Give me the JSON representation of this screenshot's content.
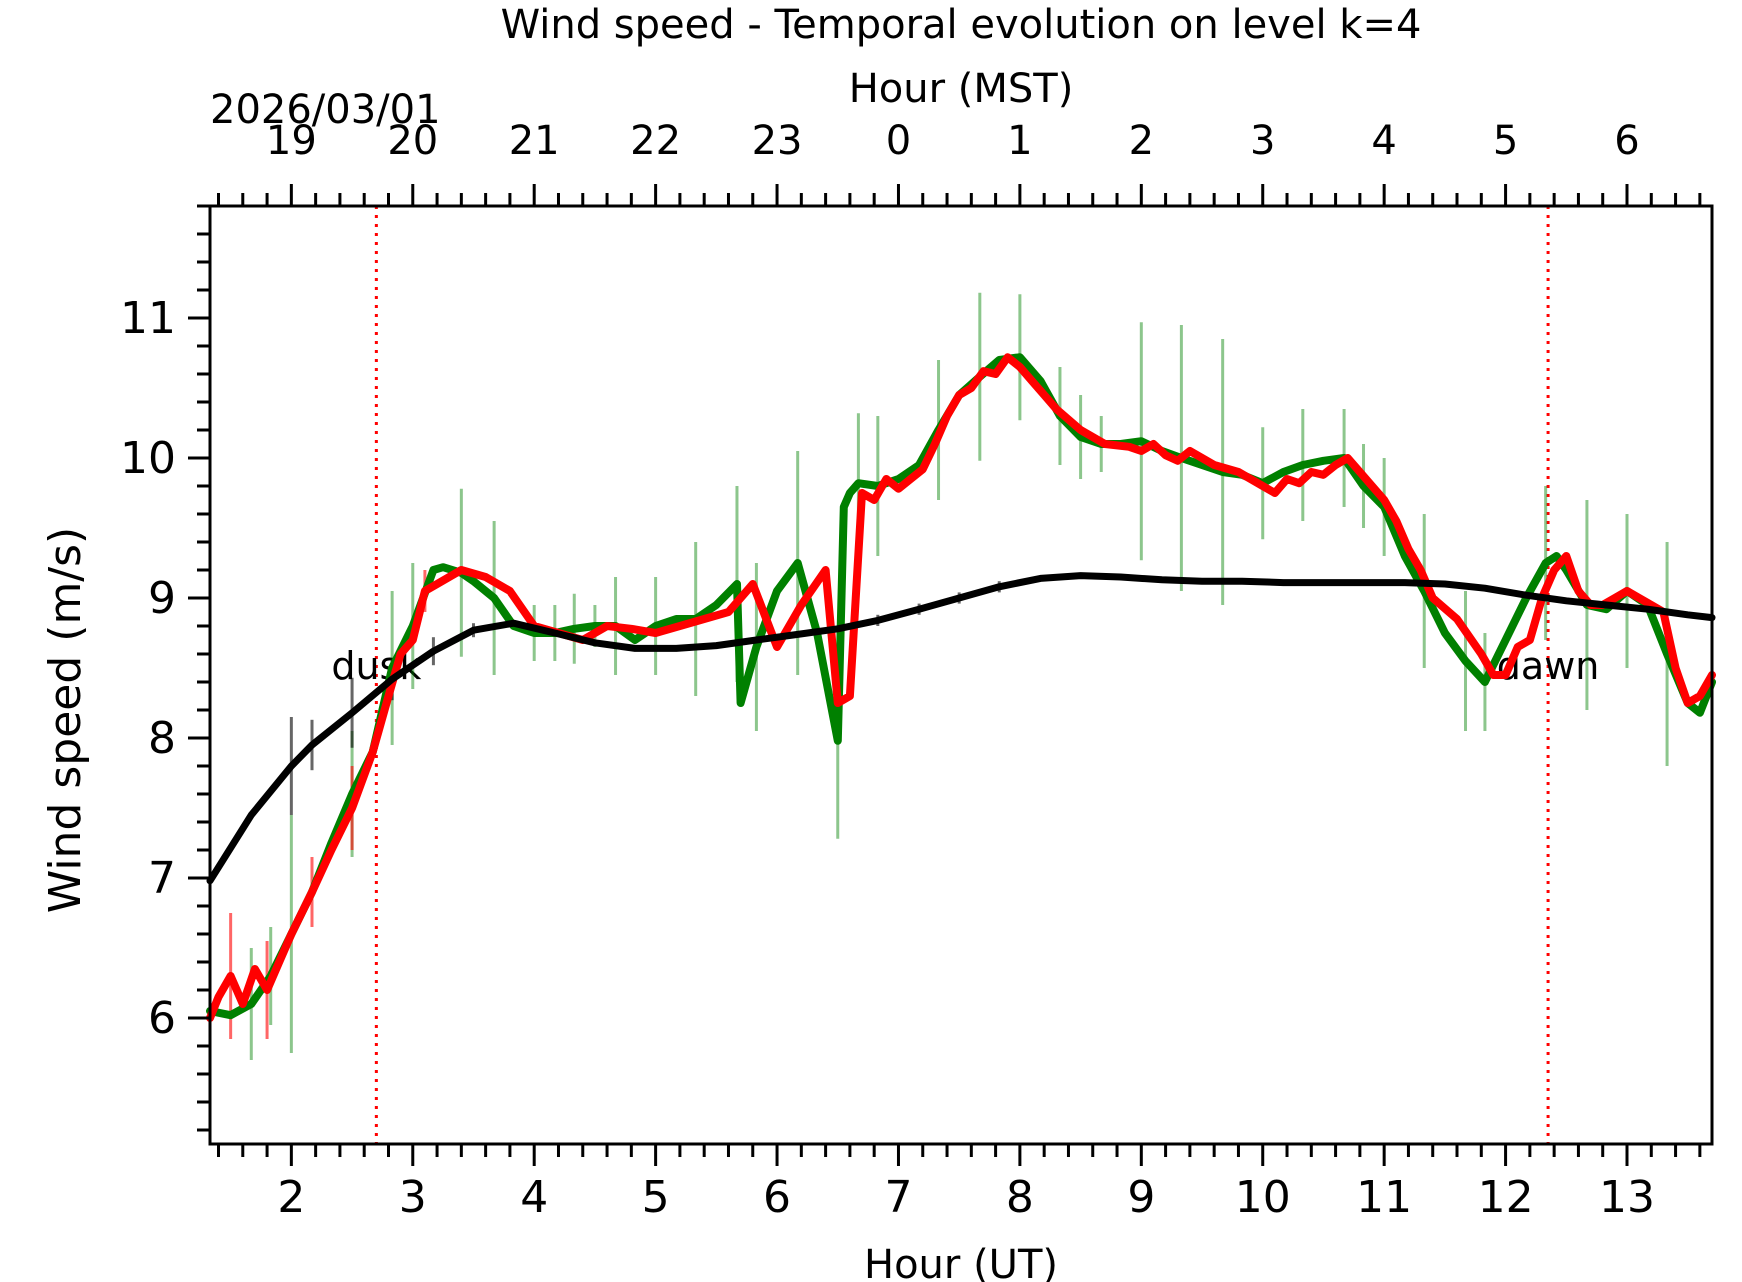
{
  "chart_data": {
    "type": "line",
    "title": "Wind speed - Temporal evolution on level k=4",
    "xlabel": "Hour (UT)",
    "ylabel": "Wind speed (m/s)",
    "top_xlabel": "Hour (MST)",
    "date_label": "2026/03/01",
    "xlim": [
      1.33,
      13.7
    ],
    "ylim": [
      5.1,
      11.8
    ],
    "x_ticks": [
      2,
      3,
      4,
      5,
      6,
      7,
      8,
      9,
      10,
      11,
      12,
      13
    ],
    "y_ticks": [
      6,
      7,
      8,
      9,
      10,
      11
    ],
    "top_ticks": [
      {
        "ut": 2,
        "label": "19"
      },
      {
        "ut": 3,
        "label": "20"
      },
      {
        "ut": 4,
        "label": "21"
      },
      {
        "ut": 5,
        "label": "22"
      },
      {
        "ut": 6,
        "label": "23"
      },
      {
        "ut": 7,
        "label": "0"
      },
      {
        "ut": 8,
        "label": "1"
      },
      {
        "ut": 9,
        "label": "2"
      },
      {
        "ut": 10,
        "label": "3"
      },
      {
        "ut": 11,
        "label": "4"
      },
      {
        "ut": 12,
        "label": "5"
      },
      {
        "ut": 13,
        "label": "6"
      }
    ],
    "grid": false,
    "markers": [
      {
        "label": "dusk",
        "x": 2.7,
        "label_y": 8.42,
        "color": "#ff0000"
      },
      {
        "label": "dawn",
        "x": 12.35,
        "label_y": 8.42,
        "color": "#ff0000"
      }
    ],
    "series": [
      {
        "color": "#008000",
        "x": [
          1.33,
          1.5,
          1.67,
          1.83,
          2.0,
          2.17,
          2.33,
          2.5,
          2.67,
          2.83,
          3.0,
          3.17,
          3.25,
          3.4,
          3.5,
          3.67,
          3.83,
          4.0,
          4.17,
          4.33,
          4.5,
          4.67,
          4.83,
          5.0,
          5.17,
          5.33,
          5.5,
          5.67,
          5.7,
          5.83,
          6.0,
          6.17,
          6.33,
          6.5,
          6.55,
          6.6,
          6.67,
          6.83,
          7.0,
          7.17,
          7.33,
          7.5,
          7.67,
          7.83,
          8.0,
          8.17,
          8.33,
          8.5,
          8.67,
          8.83,
          9.0,
          9.17,
          9.33,
          9.5,
          9.67,
          9.83,
          10.0,
          10.17,
          10.33,
          10.5,
          10.67,
          10.83,
          11.0,
          11.17,
          11.33,
          11.5,
          11.67,
          11.83,
          12.0,
          12.17,
          12.33,
          12.42,
          12.5,
          12.67,
          12.83,
          13.0,
          13.17,
          13.33,
          13.5,
          13.6,
          13.7
        ],
        "y": [
          6.05,
          6.02,
          6.1,
          6.3,
          6.6,
          6.9,
          7.25,
          7.6,
          7.9,
          8.5,
          8.8,
          9.2,
          9.22,
          9.18,
          9.12,
          9.0,
          8.8,
          8.75,
          8.75,
          8.78,
          8.8,
          8.8,
          8.7,
          8.8,
          8.85,
          8.85,
          8.95,
          9.1,
          8.25,
          8.65,
          9.05,
          9.25,
          8.75,
          7.98,
          9.65,
          9.75,
          9.82,
          9.8,
          9.85,
          9.95,
          10.2,
          10.45,
          10.58,
          10.7,
          10.72,
          10.55,
          10.3,
          10.15,
          10.1,
          10.1,
          10.12,
          10.05,
          10.0,
          9.95,
          9.9,
          9.88,
          9.82,
          9.9,
          9.95,
          9.98,
          10.0,
          9.8,
          9.65,
          9.3,
          9.05,
          8.75,
          8.55,
          8.4,
          8.7,
          9.0,
          9.25,
          9.3,
          9.2,
          8.95,
          8.92,
          9.05,
          8.95,
          8.6,
          8.25,
          8.18,
          8.4
        ],
        "err": [
          0,
          0,
          0.4,
          0.35,
          0.85,
          0,
          0,
          0.45,
          0,
          0.55,
          0.45,
          0,
          0,
          0.6,
          0,
          0.55,
          0,
          0.2,
          0.2,
          0.25,
          0.15,
          0.35,
          0,
          0.35,
          0,
          0.55,
          0,
          0.7,
          0,
          0.6,
          0,
          0.8,
          0,
          0.7,
          0,
          0,
          0.5,
          0.5,
          0,
          0,
          0.5,
          0,
          0.6,
          0,
          0.45,
          0,
          0.35,
          0.3,
          0.2,
          0,
          0.85,
          0,
          0.95,
          0,
          0.95,
          0,
          0.4,
          0,
          0.4,
          0,
          0.35,
          0.3,
          0.35,
          0,
          0.55,
          0,
          0.5,
          0.35,
          0,
          0,
          0.55,
          0,
          0,
          0.75,
          0,
          0.55,
          0,
          0.8,
          0,
          0,
          0.6
        ]
      },
      {
        "color": "#ff0000",
        "x": [
          1.33,
          1.4,
          1.5,
          1.6,
          1.7,
          1.8,
          1.9,
          2.0,
          2.17,
          2.33,
          2.5,
          2.67,
          2.8,
          2.9,
          3.0,
          3.1,
          3.2,
          3.4,
          3.6,
          3.8,
          4.0,
          4.2,
          4.4,
          4.6,
          4.8,
          5.0,
          5.2,
          5.4,
          5.6,
          5.8,
          6.0,
          6.2,
          6.4,
          6.5,
          6.6,
          6.7,
          6.8,
          6.9,
          7.0,
          7.1,
          7.2,
          7.3,
          7.4,
          7.5,
          7.6,
          7.7,
          7.8,
          7.9,
          8.0,
          8.1,
          8.2,
          8.3,
          8.5,
          8.7,
          8.9,
          9.0,
          9.1,
          9.2,
          9.3,
          9.4,
          9.6,
          9.8,
          10.0,
          10.1,
          10.2,
          10.3,
          10.4,
          10.5,
          10.6,
          10.7,
          10.8,
          10.9,
          11.0,
          11.1,
          11.2,
          11.3,
          11.4,
          11.6,
          11.8,
          11.9,
          12.0,
          12.1,
          12.2,
          12.3,
          12.4,
          12.5,
          12.6,
          12.7,
          12.8,
          12.9,
          13.0,
          13.1,
          13.2,
          13.3,
          13.4,
          13.5,
          13.6,
          13.7
        ],
        "y": [
          6.0,
          6.15,
          6.3,
          6.1,
          6.35,
          6.2,
          6.4,
          6.6,
          6.9,
          7.2,
          7.5,
          7.9,
          8.3,
          8.6,
          8.7,
          9.05,
          9.1,
          9.2,
          9.15,
          9.05,
          8.8,
          8.75,
          8.7,
          8.8,
          8.78,
          8.75,
          8.8,
          8.85,
          8.9,
          9.1,
          8.65,
          8.95,
          9.2,
          8.25,
          8.3,
          9.75,
          9.7,
          9.85,
          9.78,
          9.85,
          9.92,
          10.1,
          10.3,
          10.45,
          10.5,
          10.62,
          10.6,
          10.72,
          10.65,
          10.55,
          10.45,
          10.35,
          10.2,
          10.1,
          10.08,
          10.05,
          10.1,
          10.02,
          9.98,
          10.05,
          9.95,
          9.9,
          9.8,
          9.75,
          9.85,
          9.82,
          9.9,
          9.88,
          9.95,
          10.0,
          9.9,
          9.8,
          9.7,
          9.55,
          9.35,
          9.2,
          9.0,
          8.85,
          8.6,
          8.45,
          8.45,
          8.65,
          8.7,
          9.0,
          9.2,
          9.3,
          9.05,
          8.95,
          8.95,
          9.0,
          9.05,
          9.0,
          8.95,
          8.9,
          8.5,
          8.25,
          8.3,
          8.45
        ],
        "err": [
          0,
          0,
          0.45,
          0,
          0,
          0.35,
          0,
          0,
          0.25,
          0,
          0.3,
          0,
          0,
          0,
          0,
          0.15,
          0,
          0,
          0,
          0,
          0,
          0,
          0,
          0,
          0,
          0,
          0,
          0,
          0,
          0,
          0,
          0,
          0,
          0,
          0,
          0,
          0,
          0,
          0,
          0,
          0,
          0,
          0,
          0,
          0,
          0,
          0,
          0,
          0,
          0,
          0,
          0,
          0,
          0,
          0,
          0,
          0,
          0,
          0,
          0,
          0,
          0,
          0,
          0,
          0,
          0,
          0,
          0,
          0,
          0,
          0,
          0,
          0,
          0,
          0,
          0,
          0,
          0,
          0,
          0,
          0,
          0,
          0,
          0,
          0,
          0,
          0,
          0,
          0,
          0,
          0,
          0,
          0,
          0,
          0,
          0,
          0,
          0
        ]
      },
      {
        "color": "#000000",
        "x": [
          1.33,
          1.67,
          2.0,
          2.17,
          2.5,
          2.83,
          3.17,
          3.5,
          3.83,
          4.17,
          4.5,
          4.83,
          5.17,
          5.5,
          5.83,
          6.17,
          6.5,
          6.83,
          7.17,
          7.5,
          7.83,
          8.17,
          8.5,
          8.83,
          9.17,
          9.5,
          9.83,
          10.17,
          10.5,
          10.83,
          11.17,
          11.5,
          11.83,
          12.17,
          12.5,
          12.83,
          13.17,
          13.5,
          13.7
        ],
        "y": [
          6.98,
          7.45,
          7.8,
          7.95,
          8.18,
          8.42,
          8.62,
          8.77,
          8.82,
          8.75,
          8.68,
          8.64,
          8.64,
          8.66,
          8.7,
          8.74,
          8.78,
          8.84,
          8.92,
          9.0,
          9.08,
          9.14,
          9.16,
          9.15,
          9.13,
          9.12,
          9.12,
          9.11,
          9.11,
          9.11,
          9.11,
          9.1,
          9.07,
          9.02,
          8.98,
          8.95,
          8.92,
          8.88,
          8.86
        ],
        "err": [
          0.45,
          0,
          0.35,
          0.18,
          0.25,
          0.15,
          0.1,
          0.05,
          0,
          0,
          0,
          0,
          0,
          0,
          0,
          0,
          0,
          0.04,
          0.04,
          0.04,
          0.04,
          0,
          0,
          0,
          0,
          0,
          0,
          0,
          0,
          0,
          0,
          0,
          0,
          0,
          0,
          0,
          0,
          0,
          0
        ]
      }
    ]
  }
}
